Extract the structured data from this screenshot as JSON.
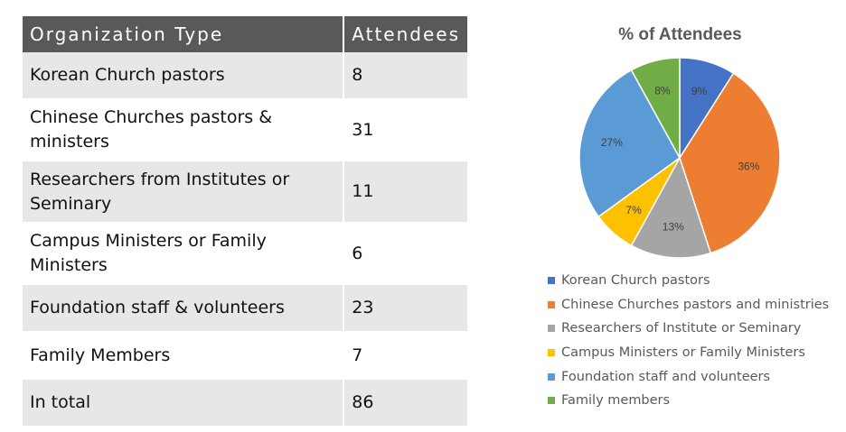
{
  "table": {
    "headers": [
      "Organization Type",
      "Attendees"
    ],
    "rows": [
      {
        "type": "Korean Church pastors",
        "attendees": "8"
      },
      {
        "type": "Chinese Churches pastors & ministers",
        "attendees": "31"
      },
      {
        "type": "Researchers from Institutes or Seminary",
        "attendees": "11"
      },
      {
        "type": "Campus Ministers or Family Ministers",
        "attendees": "6"
      },
      {
        "type": "Foundation staff & volunteers",
        "attendees": "23"
      },
      {
        "type": "Family Members",
        "attendees": "7"
      },
      {
        "type": "In total",
        "attendees": "86"
      }
    ]
  },
  "chart_data": {
    "type": "pie",
    "title": "% of Attendees",
    "legend_position": "bottom",
    "slices": [
      {
        "label": "Korean Church pastors",
        "value": 9,
        "display": "9%",
        "color": "#4472c4"
      },
      {
        "label": "Chinese Churches pastors and ministries",
        "value": 36,
        "display": "36%",
        "color": "#ed7d31"
      },
      {
        "label": "Researchers of Institute or Seminary",
        "value": 13,
        "display": "13%",
        "color": "#a5a5a5"
      },
      {
        "label": "Campus Ministers or Family Ministers",
        "value": 7,
        "display": "7%",
        "color": "#ffc000"
      },
      {
        "label": "Foundation staff and volunteers",
        "value": 27,
        "display": "27%",
        "color": "#5b9bd5"
      },
      {
        "label": "Family members",
        "value": 8,
        "display": "8%",
        "color": "#70ad47"
      }
    ]
  }
}
